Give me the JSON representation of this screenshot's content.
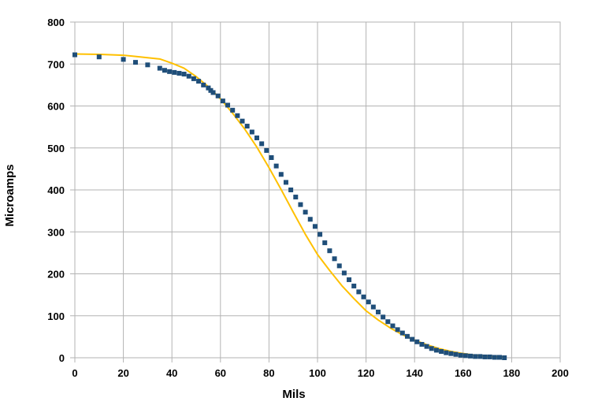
{
  "chart_data": {
    "type": "scatter",
    "title": "",
    "xlabel": "Mils",
    "ylabel": "Microamps",
    "xlim": [
      0,
      200
    ],
    "ylim": [
      0,
      800
    ],
    "x_ticks": [
      0,
      20,
      40,
      60,
      80,
      100,
      120,
      140,
      160,
      180,
      200
    ],
    "y_ticks": [
      0,
      100,
      200,
      300,
      400,
      500,
      600,
      700,
      800
    ],
    "grid": true,
    "legend": "none",
    "series": [
      {
        "kind": "points",
        "color": "#1f4e79",
        "marker": "square",
        "x": [
          0,
          10,
          20,
          25,
          30,
          35,
          37,
          39,
          41,
          43,
          45,
          47,
          49,
          51,
          53,
          55,
          56,
          57,
          59,
          61,
          63,
          65,
          67,
          69,
          71,
          73,
          75,
          77,
          79,
          81,
          83,
          85,
          87,
          89,
          91,
          93,
          95,
          97,
          99,
          101,
          103,
          105,
          107,
          109,
          111,
          113,
          115,
          117,
          119,
          121,
          123,
          125,
          127,
          129,
          131,
          133,
          135,
          137,
          139,
          141,
          143,
          145,
          147,
          149,
          151,
          153,
          155,
          157,
          159,
          161,
          163,
          165,
          167,
          169,
          171,
          173,
          175,
          177
        ],
        "y": [
          722,
          717,
          711,
          704,
          698,
          690,
          685,
          682,
          680,
          678,
          676,
          671,
          665,
          659,
          650,
          643,
          637,
          632,
          624,
          612,
          602,
          590,
          577,
          564,
          552,
          538,
          524,
          510,
          494,
          477,
          457,
          437,
          418,
          400,
          383,
          365,
          347,
          330,
          313,
          294,
          274,
          255,
          236,
          219,
          202,
          186,
          171,
          157,
          145,
          133,
          121,
          109,
          97,
          86,
          76,
          67,
          59,
          51,
          44,
          38,
          32,
          27,
          22,
          18,
          15,
          12,
          10,
          8,
          6,
          5,
          4,
          3,
          3,
          2,
          2,
          1,
          1,
          0
        ]
      },
      {
        "kind": "line",
        "color": "#ffc000",
        "x": [
          0,
          10,
          20,
          25,
          30,
          35,
          40,
          45,
          50,
          55,
          60,
          65,
          70,
          75,
          80,
          85,
          90,
          95,
          100,
          105,
          110,
          115,
          120,
          125,
          130,
          135,
          140,
          145,
          150,
          155,
          160,
          165,
          170,
          175,
          177
        ],
        "y": [
          724,
          723,
          721,
          718,
          715,
          712,
          702,
          690,
          670,
          646,
          617,
          583,
          545,
          502,
          453,
          401,
          347,
          294,
          246,
          208,
          172,
          141,
          112,
          90,
          71,
          55,
          42,
          31,
          22,
          15,
          10,
          6,
          3,
          2,
          1
        ]
      }
    ]
  }
}
